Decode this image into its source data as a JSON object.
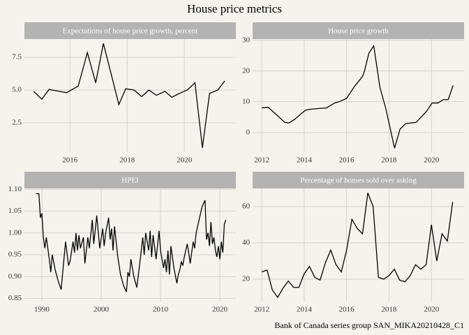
{
  "title": "House price metrics",
  "caption": "Bank of Canada series group SAN_MIKA20210428_C1",
  "chart_data": [
    {
      "type": "line",
      "title": "Expectations of house price growth, percent",
      "color": "#000000",
      "grid": true,
      "x": [
        2014.73,
        2015.02,
        2015.27,
        2015.63,
        2015.88,
        2016.29,
        2016.61,
        2016.9,
        2017.17,
        2017.71,
        2017.95,
        2018.24,
        2018.51,
        2018.76,
        2019.02,
        2019.32,
        2019.56,
        2019.83,
        2020.1,
        2020.37,
        2020.63,
        2020.88,
        2021.17,
        2021.41
      ],
      "values": [
        4.9,
        4.3,
        5.05,
        4.9,
        4.8,
        5.3,
        7.85,
        5.55,
        8.55,
        3.9,
        5.1,
        5.0,
        4.5,
        5.0,
        4.6,
        4.9,
        4.45,
        4.75,
        5.0,
        5.55,
        0.6,
        4.75,
        5.0,
        5.7
      ],
      "xlim": [
        2014.41,
        2021.8
      ],
      "ylim": [
        0.27,
        8.88
      ],
      "xticks": [
        2016,
        2018,
        2020
      ],
      "yticks": [
        2.5,
        {
          "value": 5,
          "label": "5.0"
        },
        7.5
      ]
    },
    {
      "type": "line",
      "title": "House price growth",
      "color": "#000000",
      "grid": true,
      "x": [
        2012.0,
        2012.3,
        2012.69,
        2013.08,
        2013.28,
        2013.54,
        2013.84,
        2014.07,
        2014.33,
        2014.66,
        2015.05,
        2015.44,
        2015.64,
        2016.0,
        2016.36,
        2016.75,
        2016.85,
        2017.05,
        2017.28,
        2017.57,
        2017.84,
        2018.26,
        2018.52,
        2018.79,
        2019.28,
        2019.77,
        2020.03,
        2020.3,
        2020.56,
        2020.79,
        2021.02
      ],
      "values": [
        8.0,
        8.2,
        5.8,
        3.3,
        3.1,
        4.2,
        6.0,
        7.3,
        7.6,
        7.8,
        8.0,
        9.6,
        10.0,
        11.1,
        14.9,
        18.2,
        20.2,
        25.8,
        28.2,
        14.7,
        8.0,
        -5.1,
        1.1,
        2.9,
        3.3,
        6.9,
        9.6,
        9.6,
        10.7,
        10.7,
        15.3
      ],
      "xlim": [
        2011.57,
        2021.54
      ],
      "ylim": [
        -6.4,
        30.4
      ],
      "xticks": [
        2012,
        2014,
        2016,
        2018,
        2020
      ],
      "yticks": [
        0,
        10,
        20,
        30
      ]
    },
    {
      "type": "line",
      "title": "HPEI",
      "color": "#000000",
      "grid": true,
      "x": [
        1989.0,
        1989.5,
        1989.75,
        1990.0,
        1990.25,
        1990.5,
        1990.75,
        1991.25,
        1991.5,
        1991.75,
        1992.25,
        1992.75,
        1993.25,
        1993.75,
        1994.0,
        1994.5,
        1994.75,
        1995.25,
        1995.5,
        1995.75,
        1996.0,
        1996.25,
        1996.5,
        1997.0,
        1997.25,
        1997.75,
        1998.0,
        1998.5,
        1998.75,
        1999.25,
        1999.75,
        2000.25,
        2000.5,
        2000.75,
        2001.25,
        2001.5,
        2001.75,
        2002.0,
        2002.25,
        2002.75,
        2003.25,
        2003.75,
        2004.25,
        2004.5,
        2004.75,
        2005.0,
        2005.5,
        2006.0,
        2006.5,
        2007.0,
        2007.25,
        2007.5,
        2008.0,
        2008.25,
        2008.5,
        2008.75,
        2009.25,
        2009.75,
        2010.0,
        2010.5,
        2010.75,
        2011.0,
        2011.25,
        2011.5,
        2011.75,
        2012.25,
        2012.75,
        2013.0,
        2013.25,
        2013.5,
        2013.75,
        2014.0,
        2014.5,
        2014.75,
        2015.0,
        2015.25,
        2015.5,
        2015.75,
        2016.0,
        2016.5,
        2017.0,
        2017.5,
        2017.75,
        2018.0,
        2018.25,
        2018.5,
        2018.75,
        2019.0,
        2019.25,
        2019.5,
        2019.75,
        2020.0,
        2020.25,
        2020.5,
        2020.75,
        2021.0
      ],
      "values": [
        1.09,
        1.09,
        1.035,
        1.045,
        0.99,
        0.965,
        0.99,
        0.94,
        0.91,
        0.95,
        0.915,
        0.89,
        0.87,
        0.945,
        0.98,
        0.925,
        0.935,
        0.98,
        0.955,
        1.0,
        0.96,
        0.995,
        0.965,
        0.99,
        0.93,
        0.99,
        0.965,
        1.03,
        0.975,
        1.04,
        0.965,
        1.01,
        0.97,
        1.0,
        1.035,
        0.985,
        1.01,
        0.96,
        1.015,
        0.95,
        0.905,
        0.88,
        0.865,
        0.91,
        0.9,
        0.94,
        0.9,
        0.875,
        0.93,
        0.99,
        0.95,
        1.0,
        0.96,
        1.005,
        0.945,
        0.995,
        0.94,
        1.005,
        0.96,
        0.92,
        0.94,
        0.91,
        0.96,
        0.905,
        0.97,
        0.92,
        0.885,
        0.905,
        0.915,
        0.935,
        0.925,
        0.945,
        0.975,
        0.955,
        0.93,
        0.955,
        0.98,
        0.965,
        1.0,
        1.03,
        1.06,
        1.075,
        0.985,
        1.0,
        0.97,
        1.025,
        0.975,
        0.99,
        0.96,
        0.945,
        0.97,
        0.94,
        0.98,
        0.955,
        1.02,
        1.03
      ],
      "xlim": [
        1987.06,
        2022.7
      ],
      "ylim": [
        0.843,
        1.102
      ],
      "xticks": [
        1990,
        2000,
        2010,
        2020
      ],
      "yticks": [
        0.85,
        {
          "value": 0.9,
          "label": "0.90"
        },
        0.95,
        {
          "value": 1,
          "label": "1.00"
        },
        1.05,
        {
          "value": 1.1,
          "label": "1.10"
        }
      ]
    },
    {
      "type": "line",
      "title": "Percentage of homes sold over asking",
      "color": "#000000",
      "grid": true,
      "x": [
        2012.0,
        2012.25,
        2012.5,
        2012.75,
        2013.0,
        2013.25,
        2013.5,
        2013.75,
        2014.0,
        2014.25,
        2014.5,
        2014.75,
        2015.0,
        2015.25,
        2015.5,
        2015.75,
        2016.0,
        2016.25,
        2016.5,
        2016.75,
        2017.0,
        2017.25,
        2017.5,
        2017.75,
        2018.0,
        2018.25,
        2018.5,
        2018.75,
        2019.0,
        2019.25,
        2019.5,
        2019.75,
        2020.0,
        2020.25,
        2020.5,
        2020.75,
        2021.0
      ],
      "values": [
        24,
        25,
        14,
        10,
        15,
        19,
        15.5,
        15.5,
        23,
        27,
        21,
        19.5,
        29,
        36,
        28,
        24,
        36,
        53,
        48,
        45,
        67.5,
        60,
        21,
        20,
        22,
        25.5,
        19.5,
        18.5,
        22,
        28,
        25.5,
        28,
        50,
        30,
        45,
        41,
        62.5
      ],
      "xlim": [
        2011.57,
        2021.54
      ],
      "ylim": [
        7.7,
        70
      ],
      "xticks": [
        2012,
        2014,
        2016,
        2018,
        2020
      ],
      "yticks": [
        20,
        40,
        60
      ]
    }
  ]
}
